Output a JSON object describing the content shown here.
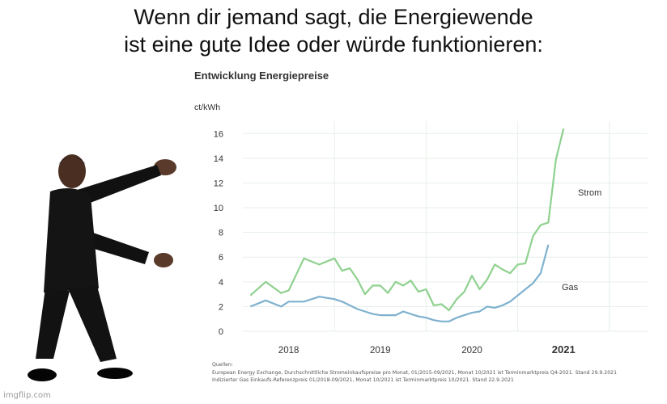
{
  "meme": {
    "caption_line1": "Wenn dir jemand sagt, die Energiewende",
    "caption_line2": "ist eine gute Idee oder würde funktionieren:",
    "watermark": "imgflip.com"
  },
  "colors": {
    "strom": "#8fd18f",
    "strom_late": "#c97070",
    "gas": "#7fb1cf",
    "gas_late": "#c97070",
    "grid": "#e6efe9",
    "text": "#333333"
  },
  "chart_data": {
    "type": "line",
    "title": "Entwicklung Energiepreise",
    "ylabel": "ct/kWh",
    "xlabel": "",
    "ylim": [
      0,
      17
    ],
    "yticks": [
      0,
      2,
      4,
      6,
      8,
      10,
      12,
      14,
      16
    ],
    "xlim": [
      "2017-07",
      "2021-12"
    ],
    "year_labels": [
      "2018",
      "2019",
      "2020",
      "2021"
    ],
    "year_dividers": [
      "2018-07",
      "2019-07",
      "2020-07",
      "2021-07"
    ],
    "grid": true,
    "x": [
      "2017-08",
      "2017-10",
      "2017-12",
      "2018-01",
      "2018-03",
      "2018-05",
      "2018-07",
      "2018-08",
      "2018-09",
      "2018-10",
      "2018-11",
      "2018-12",
      "2019-01",
      "2019-02",
      "2019-03",
      "2019-04",
      "2019-05",
      "2019-06",
      "2019-07",
      "2019-08",
      "2019-09",
      "2019-10",
      "2019-11",
      "2019-12",
      "2020-01",
      "2020-02",
      "2020-03",
      "2020-04",
      "2020-05",
      "2020-06",
      "2020-07",
      "2020-08",
      "2020-09",
      "2020-10",
      "2020-11",
      "2020-12",
      "2021-01",
      "2021-02",
      "2021-03",
      "2021-04",
      "2021-05",
      "2021-06",
      "2021-07",
      "2021-08",
      "2021-09",
      "2021-10"
    ],
    "series": [
      {
        "name": "Strom",
        "color_key": "strom",
        "late_from": "2021-03",
        "values": [
          2.9,
          4.0,
          3.1,
          3.3,
          5.9,
          5.4,
          5.9,
          4.9,
          5.1,
          4.2,
          3.0,
          3.7,
          3.7,
          3.1,
          4.0,
          3.7,
          4.1,
          3.2,
          3.4,
          2.1,
          2.2,
          1.7,
          2.6,
          3.2,
          4.5,
          3.4,
          4.2,
          5.4,
          5.0,
          4.7,
          5.4,
          5.5,
          7.7,
          8.6,
          8.8,
          13.9,
          16.4,
          null,
          null,
          null,
          null,
          null,
          null,
          null,
          null,
          null
        ]
      },
      {
        "name": "Gas",
        "color_key": "gas",
        "late_from": "2021-03",
        "values": [
          2.0,
          2.5,
          2.0,
          2.4,
          2.4,
          2.8,
          2.6,
          2.4,
          2.1,
          1.8,
          1.6,
          1.4,
          1.3,
          1.3,
          1.3,
          1.6,
          1.4,
          1.2,
          1.1,
          0.9,
          0.8,
          0.8,
          1.1,
          1.3,
          1.5,
          1.6,
          2.0,
          1.9,
          2.1,
          2.4,
          2.9,
          3.4,
          3.9,
          4.7,
          7.0,
          null,
          null,
          null,
          null,
          null,
          null,
          null,
          null,
          null,
          null,
          null
        ]
      }
    ],
    "annotations": [
      {
        "text": "Strom",
        "series": "Strom"
      },
      {
        "text": "Gas",
        "series": "Gas"
      }
    ],
    "sources": {
      "heading": "Quellen:",
      "line1": "European Energy Exchange, Durchschnittliche Stromeinkaufspreise pro Monat, 01/2015-09/2021, Monat 10/2021 ist Terminmarktpreis Q4-2021. Stand 29.9.2021",
      "line2": "Indizierter Gas Einkaufs-Referenzpreis 01/2018-09/2021, Monat 10/2021 ist Terminmarktpreis 10/2021. Stand 22.9.2021"
    }
  }
}
